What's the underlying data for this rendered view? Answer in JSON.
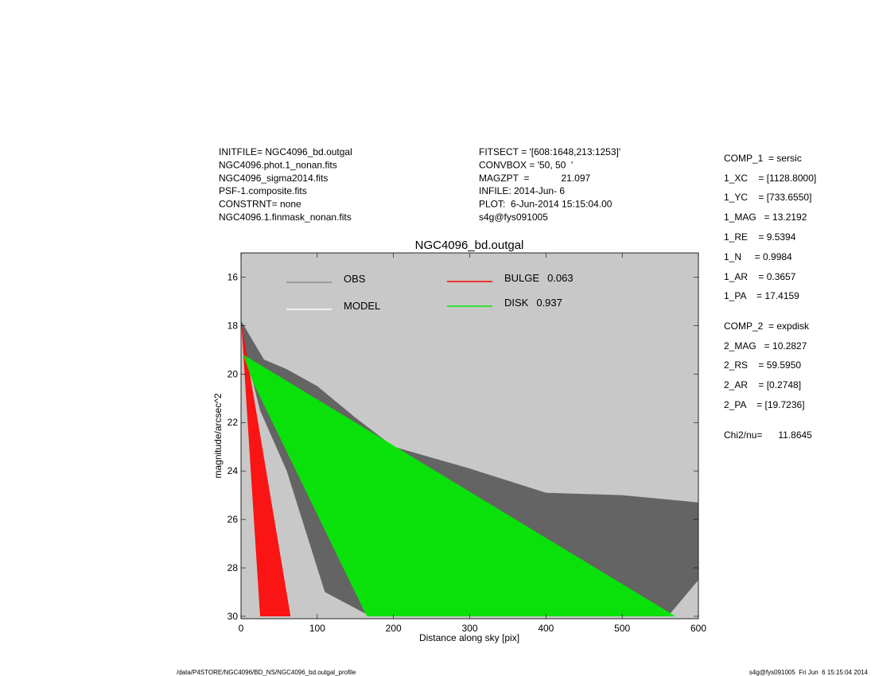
{
  "header_left": [
    "INITFILE= NGC4096_bd.outgal",
    "NGC4096.phot.1_nonan.fits",
    "NGC4096_sigma2014.fits",
    "PSF-1.composite.fits",
    "CONSTRNT= none",
    "NGC4096.1.finmask_nonan.fits"
  ],
  "header_mid": [
    "FITSECT = '[608:1648,213:1253]'",
    "CONVBOX = '50, 50  '",
    "MAGZPT  =            21.097",
    "INFILE: 2014-Jun- 6",
    "PLOT:  6-Jun-2014 15:15:04.00",
    "s4g@fys091005"
  ],
  "params": [
    "COMP_1  = sersic",
    "1_XC    = [1128.8000]",
    "1_YC    = [733.6550]",
    "1_MAG   = 13.2192",
    "1_RE    = 9.5394",
    "1_N     = 0.9984",
    "1_AR    = 0.3657",
    "1_PA    = 17.4159",
    "COMP_2  = expdisk",
    "2_MAG   = 10.2827",
    "2_RS    = 59.5950",
    "2_AR    = [0.2748]",
    "2_PA    = [19.7236]",
    "Chi2/nu=      11.8645"
  ],
  "footer": {
    "left": "/data/P4STORE/NGC4096/BD_NS/NGC4096_bd.outgal_profile",
    "right": "s4g@fys091005  Fri Jun  6 15:15:04 2014"
  },
  "chart_data": {
    "type": "region",
    "title": "NGC4096_bd.outgal",
    "x_label": "Distance along sky [pix]",
    "y_label": "magnitude/arcsec^2",
    "xlim": [
      0,
      600
    ],
    "xticks": [
      0,
      100,
      200,
      300,
      400,
      500,
      600
    ],
    "ylim": [
      30.1,
      15
    ],
    "yticks": [
      16,
      18,
      20,
      22,
      24,
      26,
      28,
      30
    ],
    "background": "#c8c8c8",
    "series": [
      {
        "name": "OBS",
        "color": "#595959",
        "legend_color": "#8c8c8c",
        "x": [
          0,
          30,
          60,
          100,
          150,
          200,
          300,
          400,
          500,
          600,
          600,
          560,
          170,
          110,
          60,
          25,
          5
        ],
        "values": [
          17.8,
          19.4,
          19.8,
          20.5,
          21.8,
          23,
          23.9,
          24.9,
          25,
          25.3,
          28.5,
          30,
          30,
          29,
          24,
          21.5,
          19
        ]
      },
      {
        "name": "MODEL",
        "color": "#ffffff"
      },
      {
        "name": "BULGE",
        "fraction": 0.063,
        "color": "#ff0000",
        "x": [
          0,
          65,
          25,
          1
        ],
        "values": [
          17.8,
          30,
          30,
          18.2
        ]
      },
      {
        "name": "DISK",
        "fraction": 0.937,
        "color": "#00ee00",
        "x": [
          3,
          570,
          165,
          15
        ],
        "values": [
          19.2,
          30,
          30,
          20.3
        ]
      }
    ]
  }
}
